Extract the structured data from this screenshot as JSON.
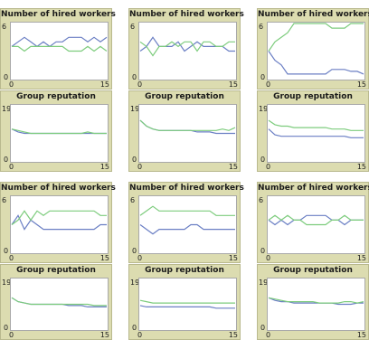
{
  "chart_data": [
    {
      "type": "line",
      "title": "Number of hired workers",
      "xlim": [
        0,
        15
      ],
      "ylim": [
        0,
        6
      ],
      "xticks": [
        "0",
        "15"
      ],
      "yticks": [
        "0",
        "6"
      ],
      "x": [
        0,
        1,
        2,
        3,
        4,
        5,
        6,
        7,
        8,
        9,
        10,
        11,
        12,
        13,
        14,
        15
      ],
      "series": [
        {
          "color": "#6b7fc4",
          "values": [
            3.5,
            4,
            4.5,
            4,
            3.5,
            4,
            3.5,
            4,
            4,
            4.5,
            4.5,
            4.5,
            4,
            4.5,
            4,
            4.5
          ]
        },
        {
          "color": "#7dcc7d",
          "values": [
            3.5,
            3.5,
            3,
            3.5,
            3.5,
            3.5,
            3.5,
            3.5,
            3.5,
            3,
            3,
            3,
            3.5,
            3,
            3.5,
            3
          ]
        }
      ]
    },
    {
      "type": "line",
      "title": "Number of hired workers",
      "xlim": [
        0,
        15
      ],
      "ylim": [
        0,
        6
      ],
      "xticks": [
        "0",
        "15"
      ],
      "yticks": [
        "0",
        "6"
      ],
      "x": [
        0,
        1,
        2,
        3,
        4,
        5,
        6,
        7,
        8,
        9,
        10,
        11,
        12,
        13,
        14,
        15
      ],
      "series": [
        {
          "color": "#6b7fc4",
          "values": [
            3,
            3.5,
            4.5,
            3.5,
            3.5,
            3.5,
            4,
            3,
            3.5,
            4,
            3.5,
            3.5,
            3.5,
            3.5,
            3,
            3
          ]
        },
        {
          "color": "#7dcc7d",
          "values": [
            4,
            3.5,
            2.5,
            3.5,
            3.5,
            4,
            3.5,
            4,
            4,
            3,
            4,
            4,
            3.5,
            3.5,
            4,
            4
          ]
        }
      ]
    },
    {
      "type": "line",
      "title": "Number of hired workers",
      "xlim": [
        0,
        15
      ],
      "ylim": [
        0,
        6
      ],
      "xticks": [
        "0",
        "15"
      ],
      "yticks": [
        "0",
        "6"
      ],
      "x": [
        0,
        1,
        2,
        3,
        4,
        5,
        6,
        7,
        8,
        9,
        10,
        11,
        12,
        13,
        14,
        15
      ],
      "series": [
        {
          "color": "#6b7fc4",
          "values": [
            3,
            2,
            1.5,
            0.5,
            0.5,
            0.5,
            0.5,
            0.5,
            0.5,
            0.5,
            1,
            1,
            1,
            0.8,
            0.8,
            0.5
          ]
        },
        {
          "color": "#7dcc7d",
          "values": [
            3,
            4,
            4.5,
            5,
            6,
            6,
            6,
            6,
            6,
            6,
            5.5,
            5.5,
            5.5,
            6,
            6,
            6
          ]
        }
      ]
    },
    {
      "type": "line",
      "title": "Group reputation",
      "xlim": [
        0,
        15
      ],
      "ylim": [
        0,
        19
      ],
      "xticks": [
        "0",
        "15"
      ],
      "yticks": [
        "0",
        "19"
      ],
      "x": [
        0,
        1,
        2,
        3,
        4,
        5,
        6,
        7,
        8,
        9,
        10,
        11,
        12,
        13,
        14,
        15
      ],
      "series": [
        {
          "color": "#6b7fc4",
          "values": [
            11,
            10,
            9.5,
            9.5,
            9.5,
            9.5,
            9.5,
            9.5,
            9.5,
            9.5,
            9.5,
            9.5,
            9.5,
            9.5,
            9.5,
            9.5
          ]
        },
        {
          "color": "#7dcc7d",
          "values": [
            11,
            10.5,
            10,
            9.5,
            9.5,
            9.5,
            9.5,
            9.5,
            9.5,
            9.5,
            9.5,
            9.5,
            10,
            9.5,
            9.5,
            9.5
          ]
        }
      ]
    },
    {
      "type": "line",
      "title": "Group reputation",
      "xlim": [
        0,
        15
      ],
      "ylim": [
        0,
        19
      ],
      "xticks": [
        "0",
        "15"
      ],
      "yticks": [
        "0",
        "19"
      ],
      "x": [
        0,
        1,
        2,
        3,
        4,
        5,
        6,
        7,
        8,
        9,
        10,
        11,
        12,
        13,
        14,
        15
      ],
      "series": [
        {
          "color": "#6b7fc4",
          "values": [
            14,
            12,
            11,
            10.5,
            10.5,
            10.5,
            10.5,
            10.5,
            10.5,
            10,
            10,
            10,
            9.5,
            9.5,
            9.5,
            9.5
          ]
        },
        {
          "color": "#7dcc7d",
          "values": [
            14,
            12,
            11,
            10.5,
            10.5,
            10.5,
            10.5,
            10.5,
            10.5,
            10.5,
            10.5,
            10.5,
            10.5,
            11,
            10.5,
            11.5
          ]
        }
      ]
    },
    {
      "type": "line",
      "title": "Group reputation",
      "xlim": [
        0,
        15
      ],
      "ylim": [
        0,
        19
      ],
      "xticks": [
        "0",
        "15"
      ],
      "yticks": [
        "0",
        "19"
      ],
      "x": [
        0,
        1,
        2,
        3,
        4,
        5,
        6,
        7,
        8,
        9,
        10,
        11,
        12,
        13,
        14,
        15
      ],
      "series": [
        {
          "color": "#6b7fc4",
          "values": [
            11,
            9,
            8.5,
            8.5,
            8.5,
            8.5,
            8.5,
            8.5,
            8.5,
            8.5,
            8.5,
            8.5,
            8.5,
            8,
            8,
            8
          ]
        },
        {
          "color": "#7dcc7d",
          "values": [
            14,
            12.5,
            12,
            12,
            11.5,
            11.5,
            11.5,
            11.5,
            11.5,
            11.5,
            11,
            11,
            11,
            10.5,
            10.5,
            10.5
          ]
        }
      ]
    },
    {
      "type": "line",
      "title": "Number of hired workers",
      "xlim": [
        0,
        15
      ],
      "ylim": [
        0,
        6
      ],
      "xticks": [
        "0",
        "15"
      ],
      "yticks": [
        "0",
        "6"
      ],
      "x": [
        0,
        1,
        2,
        3,
        4,
        5,
        6,
        7,
        8,
        9,
        10,
        11,
        12,
        13,
        14,
        15
      ],
      "series": [
        {
          "color": "#6b7fc4",
          "values": [
            3,
            4,
            2.5,
            3.5,
            3,
            2.5,
            2.5,
            2.5,
            2.5,
            2.5,
            2.5,
            2.5,
            2.5,
            2.5,
            3,
            3
          ]
        },
        {
          "color": "#7dcc7d",
          "values": [
            3,
            3.5,
            4.5,
            3.5,
            4.5,
            4,
            4.5,
            4.5,
            4.5,
            4.5,
            4.5,
            4.5,
            4.5,
            4.5,
            4,
            4
          ]
        }
      ]
    },
    {
      "type": "line",
      "title": "Number of hired workers",
      "xlim": [
        0,
        15
      ],
      "ylim": [
        0,
        6
      ],
      "xticks": [
        "0",
        "15"
      ],
      "yticks": [
        "0",
        "6"
      ],
      "x": [
        0,
        1,
        2,
        3,
        4,
        5,
        6,
        7,
        8,
        9,
        10,
        11,
        12,
        13,
        14,
        15
      ],
      "series": [
        {
          "color": "#6b7fc4",
          "values": [
            3,
            2.5,
            2,
            2.5,
            2.5,
            2.5,
            2.5,
            2.5,
            3,
            3,
            2.5,
            2.5,
            2.5,
            2.5,
            2.5,
            2.5
          ]
        },
        {
          "color": "#7dcc7d",
          "values": [
            4,
            4.5,
            5,
            4.5,
            4.5,
            4.5,
            4.5,
            4.5,
            4.5,
            4.5,
            4.5,
            4.5,
            4,
            4,
            4,
            4
          ]
        }
      ]
    },
    {
      "type": "line",
      "title": "Number of hired workers",
      "xlim": [
        0,
        15
      ],
      "ylim": [
        0,
        6
      ],
      "xticks": [
        "0",
        "15"
      ],
      "yticks": [
        "0",
        "6"
      ],
      "x": [
        0,
        1,
        2,
        3,
        4,
        5,
        6,
        7,
        8,
        9,
        10,
        11,
        12,
        13,
        14,
        15
      ],
      "series": [
        {
          "color": "#6b7fc4",
          "values": [
            3.5,
            3,
            3.5,
            3,
            3.5,
            3.5,
            4,
            4,
            4,
            4,
            3.5,
            3.5,
            3,
            3.5,
            3.5,
            3.5
          ]
        },
        {
          "color": "#7dcc7d",
          "values": [
            3.5,
            4,
            3.5,
            4,
            3.5,
            3.5,
            3,
            3,
            3,
            3,
            3.5,
            3.5,
            4,
            3.5,
            3.5,
            3.5
          ]
        }
      ]
    },
    {
      "type": "line",
      "title": "Group reputation",
      "xlim": [
        0,
        15
      ],
      "ylim": [
        0,
        19
      ],
      "xticks": [
        "0",
        "15"
      ],
      "yticks": [
        "0",
        "19"
      ],
      "x": [
        0,
        1,
        2,
        3,
        4,
        5,
        6,
        7,
        8,
        9,
        10,
        11,
        12,
        13,
        14,
        15
      ],
      "series": [
        {
          "color": "#6b7fc4",
          "values": [
            12,
            10.5,
            10,
            9.5,
            9.5,
            9.5,
            9.5,
            9.5,
            9.5,
            9,
            9,
            9,
            8.5,
            8.5,
            8.5,
            8.5
          ]
        },
        {
          "color": "#7dcc7d",
          "values": [
            12,
            10.5,
            10,
            9.5,
            9.5,
            9.5,
            9.5,
            9.5,
            9.5,
            9.5,
            9.5,
            9.5,
            9.5,
            9,
            9,
            9
          ]
        }
      ]
    },
    {
      "type": "line",
      "title": "Group reputation",
      "xlim": [
        0,
        15
      ],
      "ylim": [
        0,
        19
      ],
      "xticks": [
        "0",
        "15"
      ],
      "yticks": [
        "0",
        "19"
      ],
      "x": [
        0,
        1,
        2,
        3,
        4,
        5,
        6,
        7,
        8,
        9,
        10,
        11,
        12,
        13,
        14,
        15
      ],
      "series": [
        {
          "color": "#6b7fc4",
          "values": [
            9,
            8.5,
            8.5,
            8.5,
            8.5,
            8.5,
            8.5,
            8.5,
            8.5,
            8.5,
            8.5,
            8.5,
            8,
            8,
            8,
            8
          ]
        },
        {
          "color": "#7dcc7d",
          "values": [
            11,
            10.5,
            10,
            10,
            10,
            10,
            10,
            10,
            10,
            10,
            10,
            10,
            10,
            10,
            10,
            10
          ]
        }
      ]
    },
    {
      "type": "line",
      "title": "Group reputation",
      "xlim": [
        0,
        15
      ],
      "ylim": [
        0,
        19
      ],
      "xticks": [
        "0",
        "15"
      ],
      "yticks": [
        "0",
        "19"
      ],
      "x": [
        0,
        1,
        2,
        3,
        4,
        5,
        6,
        7,
        8,
        9,
        10,
        11,
        12,
        13,
        14,
        15
      ],
      "series": [
        {
          "color": "#6b7fc4",
          "values": [
            12,
            11,
            10.5,
            10.5,
            10,
            10,
            10,
            10,
            10,
            10,
            10,
            9.5,
            9.5,
            9.5,
            10,
            10
          ]
        },
        {
          "color": "#7dcc7d",
          "values": [
            12,
            11.5,
            11,
            10.5,
            10.5,
            10.5,
            10.5,
            10.5,
            10,
            10,
            10,
            10,
            10.5,
            10.5,
            10,
            10.5
          ]
        }
      ]
    }
  ]
}
